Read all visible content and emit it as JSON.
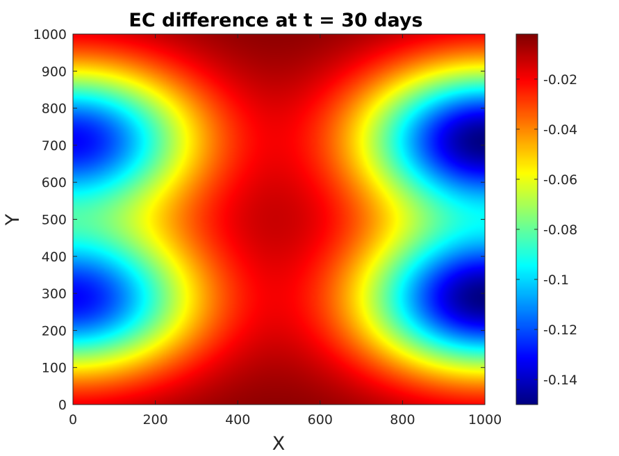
{
  "chart_data": {
    "type": "heatmap",
    "title": "EC difference at t = 30 days",
    "xlabel": "X",
    "ylabel": "Y",
    "xlim": [
      0,
      1000
    ],
    "ylim": [
      0,
      1000
    ],
    "x_ticks": [
      0,
      200,
      400,
      600,
      800,
      1000
    ],
    "y_ticks": [
      0,
      100,
      200,
      300,
      400,
      500,
      600,
      700,
      800,
      900,
      1000
    ],
    "colormap": "jet",
    "color_range": [
      -0.15,
      -0.002
    ],
    "colorbar_ticks": [
      -0.02,
      -0.04,
      -0.06,
      -0.08,
      -0.1,
      -0.12,
      -0.14
    ],
    "field": {
      "description_of_values": "minimum values near the left and right edges",
      "extrema": [
        {
          "x": 0,
          "y": 285,
          "value": -0.13
        },
        {
          "x": 0,
          "y": 715,
          "value": -0.13
        },
        {
          "x": 1000,
          "y": 285,
          "value": -0.148
        },
        {
          "x": 1000,
          "y": 715,
          "value": -0.148
        }
      ],
      "background_value": -0.002
    }
  }
}
